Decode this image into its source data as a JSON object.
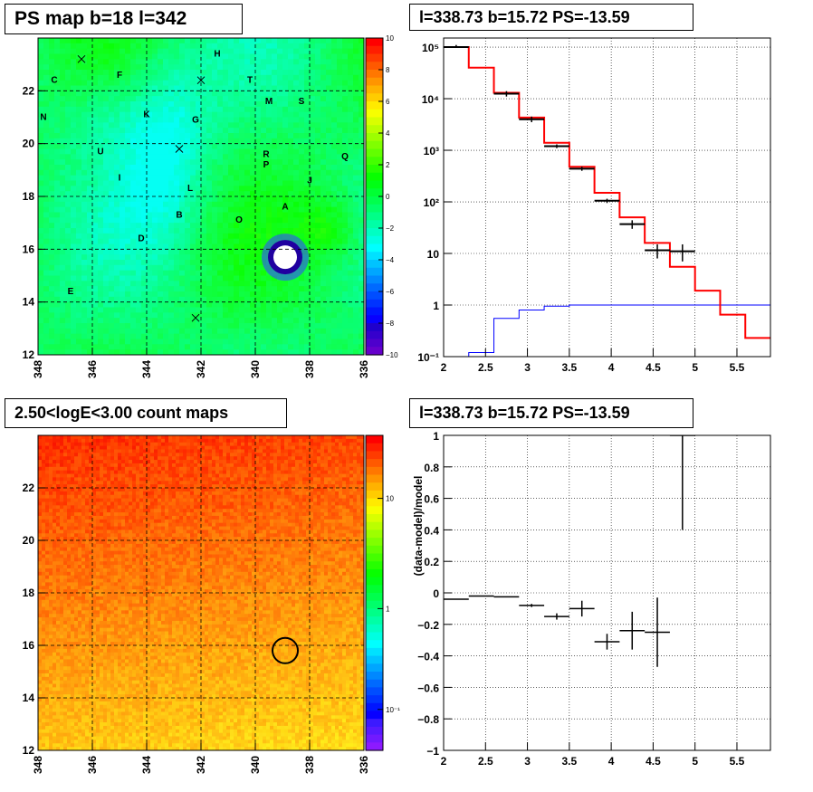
{
  "panels": {
    "tl_title": "PS map b=18 l=342",
    "tr_title": "l=338.73 b=15.72 PS=-13.59",
    "bl_title": "2.50<logE<3.00 count maps",
    "br_title": "l=338.73 b=15.72 PS=-13.59"
  },
  "colors": {
    "red": "#ff0000",
    "black": "#000000",
    "blue": "#0000ff"
  },
  "chart_data": [
    {
      "type": "heatmap",
      "title": "PS map b=18 l=342",
      "x_ticks": [
        "348",
        "346",
        "344",
        "342",
        "340",
        "338",
        "336"
      ],
      "y_ticks": [
        "12",
        "14",
        "16",
        "18",
        "20",
        "22"
      ],
      "xlim": [
        348,
        336
      ],
      "ylim": [
        12,
        24
      ],
      "colorbar_ticks": [
        "10",
        "8",
        "6",
        "4",
        "2",
        "0",
        "−2",
        "−4",
        "−6",
        "−8",
        "−10"
      ],
      "zlim": [
        -10,
        10
      ],
      "hotspot": {
        "l": 338.9,
        "b": 15.7,
        "value": -13.59
      },
      "sources": [
        {
          "label": "H",
          "l": 341.4,
          "b": 23.3
        },
        {
          "label": "C",
          "l": 347.4,
          "b": 22.3
        },
        {
          "label": "F",
          "l": 345.0,
          "b": 22.5
        },
        {
          "label": "T",
          "l": 340.2,
          "b": 22.3
        },
        {
          "label": "N",
          "l": 347.8,
          "b": 20.9
        },
        {
          "label": "K",
          "l": 344.0,
          "b": 21.0
        },
        {
          "label": "G",
          "l": 342.2,
          "b": 20.8
        },
        {
          "label": "M",
          "l": 339.5,
          "b": 21.5
        },
        {
          "label": "S",
          "l": 338.3,
          "b": 21.5
        },
        {
          "label": "U",
          "l": 345.7,
          "b": 19.6
        },
        {
          "label": "R",
          "l": 339.6,
          "b": 19.5
        },
        {
          "label": "P",
          "l": 339.6,
          "b": 19.1
        },
        {
          "label": "Q",
          "l": 336.7,
          "b": 19.4
        },
        {
          "label": "I",
          "l": 345.0,
          "b": 18.6
        },
        {
          "label": "J",
          "l": 338.0,
          "b": 18.5
        },
        {
          "label": "L",
          "l": 342.4,
          "b": 18.2
        },
        {
          "label": "A",
          "l": 338.9,
          "b": 17.5
        },
        {
          "label": "B",
          "l": 342.8,
          "b": 17.2
        },
        {
          "label": "O",
          "l": 340.6,
          "b": 17.0
        },
        {
          "label": "D",
          "l": 344.2,
          "b": 16.3
        },
        {
          "label": "E",
          "l": 346.8,
          "b": 14.3
        }
      ],
      "crosses": [
        {
          "l": 346.4,
          "b": 23.2
        },
        {
          "l": 342.0,
          "b": 22.4
        },
        {
          "l": 342.8,
          "b": 19.8
        },
        {
          "l": 342.2,
          "b": 13.4
        }
      ]
    },
    {
      "type": "line",
      "title": "l=338.73 b=15.72 PS=-13.59",
      "x_ticks": [
        "2",
        "2.5",
        "3",
        "3.5",
        "4",
        "4.5",
        "5",
        "5.5"
      ],
      "y_ticks": [
        "10⁻¹",
        "1",
        "10",
        "10²",
        "10³",
        "10⁴",
        "10⁵"
      ],
      "xlim": [
        2,
        5.9
      ],
      "ylim": [
        0.1,
        150000
      ],
      "yscale": "log",
      "grid": true,
      "series": [
        {
          "values": [
            [
              2.0,
              100000
            ],
            [
              2.3,
              40000
            ],
            [
              2.6,
              13000
            ],
            [
              2.9,
              4300
            ],
            [
              3.2,
              1400
            ],
            [
              3.5,
              480
            ],
            [
              3.8,
              150
            ],
            [
              4.1,
              50
            ],
            [
              4.4,
              16
            ],
            [
              4.7,
              5.5
            ],
            [
              5.0,
              1.9
            ],
            [
              5.3,
              0.65
            ],
            [
              5.6,
              0.23
            ],
            [
              5.9,
              0.23
            ]
          ]
        },
        {
          "values": [
            [
              2.15,
              100000
            ],
            [
              2.75,
              12500
            ],
            [
              3.05,
              4000
            ],
            [
              3.35,
              1200
            ],
            [
              3.65,
              440
            ],
            [
              3.95,
              105
            ],
            [
              4.25,
              37
            ],
            [
              4.55,
              11.5
            ],
            [
              4.85,
              11
            ]
          ],
          "errors": [
            [
              2.15,
              0.15,
              100000,
              110000
            ],
            [
              2.75,
              0.15,
              11000,
              14000
            ],
            [
              3.05,
              0.15,
              3500,
              4500
            ],
            [
              3.35,
              0.15,
              1100,
              1300
            ],
            [
              3.65,
              0.15,
              400,
              480
            ],
            [
              3.95,
              0.15,
              95,
              115
            ],
            [
              4.25,
              0.15,
              30,
              44
            ],
            [
              4.55,
              0.15,
              8,
              15
            ],
            [
              4.85,
              0.15,
              7,
              15
            ]
          ]
        },
        {
          "values": [
            [
              2.0,
              0.1
            ],
            [
              2.3,
              0.12
            ],
            [
              2.6,
              0.55
            ],
            [
              2.9,
              0.8
            ],
            [
              3.2,
              0.95
            ],
            [
              3.5,
              1.0
            ],
            [
              3.8,
              1.0
            ],
            [
              4.1,
              1.0
            ],
            [
              4.4,
              1.0
            ],
            [
              4.7,
              1.0
            ],
            [
              5.0,
              1.0
            ],
            [
              5.3,
              1.0
            ],
            [
              5.6,
              1.0
            ],
            [
              5.9,
              1.0
            ]
          ]
        }
      ]
    },
    {
      "type": "heatmap",
      "title": "2.50<logE<3.00 count maps",
      "x_ticks": [
        "348",
        "346",
        "344",
        "342",
        "340",
        "338",
        "336"
      ],
      "y_ticks": [
        "12",
        "14",
        "16",
        "18",
        "20",
        "22"
      ],
      "xlim": [
        348,
        336
      ],
      "ylim": [
        12,
        24
      ],
      "colorbar_ticks": [
        "10",
        "1",
        "10⁻¹"
      ],
      "zscale": "log",
      "circle": {
        "l": 338.9,
        "b": 15.8
      }
    },
    {
      "type": "scatter",
      "title": "l=338.73 b=15.72 PS=-13.59",
      "ylabel": "(data-model)/model",
      "x_ticks": [
        "2",
        "2.5",
        "3",
        "3.5",
        "4",
        "4.5",
        "5",
        "5.5"
      ],
      "y_ticks": [
        "1",
        "0.8",
        "0.6",
        "0.4",
        "0.2",
        "0",
        "−0.2",
        "−0.4",
        "−0.6",
        "−0.8",
        "−1"
      ],
      "xlim": [
        2,
        5.9
      ],
      "ylim": [
        -1,
        1
      ],
      "grid": true,
      "points": [
        {
          "x": 2.15,
          "y": -0.04,
          "xerr": 0.15,
          "yerr": 0.0
        },
        {
          "x": 2.45,
          "y": -0.02,
          "xerr": 0.15,
          "yerr": 0.0
        },
        {
          "x": 2.75,
          "y": -0.025,
          "xerr": 0.15,
          "yerr": 0.0
        },
        {
          "x": 3.05,
          "y": -0.08,
          "xerr": 0.15,
          "yerr": 0.01
        },
        {
          "x": 3.35,
          "y": -0.15,
          "xerr": 0.15,
          "yerr": 0.02
        },
        {
          "x": 3.65,
          "y": -0.1,
          "xerr": 0.15,
          "yerr": 0.05
        },
        {
          "x": 3.95,
          "y": -0.31,
          "xerr": 0.15,
          "yerr": 0.05
        },
        {
          "x": 4.25,
          "y": -0.24,
          "xerr": 0.15,
          "yerr": 0.12
        },
        {
          "x": 4.55,
          "y": -0.25,
          "xerr": 0.15,
          "yerr": 0.22
        },
        {
          "x": 4.85,
          "y": 1.0,
          "xerr": 0.15,
          "yerr": 0.6
        }
      ]
    }
  ]
}
